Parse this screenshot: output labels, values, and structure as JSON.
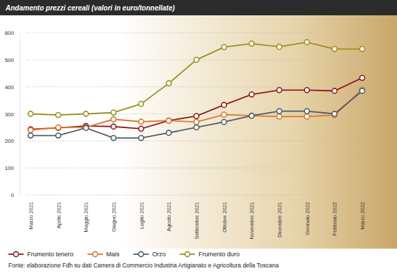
{
  "chart_data": {
    "type": "line",
    "title": "Andamento prezzi cereali (valori in euro/tonnellate)",
    "source": "Fonte: elaborazione Fdh su dati Camera di Commercio Industria Artigianato e Agricoltura della Toscana",
    "categories": [
      "Marzo 2021",
      "Aprile 2021",
      "Maggio 2021",
      "Giugno 2021",
      "Luglio 2021",
      "Agosto 2021",
      "Settembre 2021",
      "Ottobre 2021",
      "Novembre 2021",
      "Dicembre 2021",
      "Gennaio 2022",
      "Febbraio 2022",
      "Marzo 2022"
    ],
    "series": [
      {
        "name": "Frumento tenero",
        "color": "#8c1c1c",
        "values": [
          243,
          248,
          255,
          253,
          245,
          275,
          292,
          333,
          372,
          388,
          388,
          385,
          433
        ]
      },
      {
        "name": "Mais",
        "color": "#d9772c",
        "values": [
          240,
          250,
          250,
          280,
          271,
          275,
          270,
          297,
          293,
          290,
          290,
          295,
          390
        ]
      },
      {
        "name": "Orzo",
        "color": "#4d5b68",
        "values": [
          220,
          220,
          248,
          211,
          211,
          230,
          250,
          270,
          293,
          310,
          310,
          300,
          385
        ]
      },
      {
        "name": "Frumento duro",
        "color": "#9a8f1e",
        "values": [
          300,
          296,
          300,
          305,
          337,
          413,
          500,
          547,
          560,
          548,
          565,
          540,
          540
        ]
      }
    ],
    "ylim": [
      0,
      600
    ],
    "yticks": [
      0,
      100,
      200,
      300,
      400,
      500,
      600
    ],
    "grid": true,
    "legend": "bottom",
    "marker": "circle",
    "line_style": "solid"
  }
}
